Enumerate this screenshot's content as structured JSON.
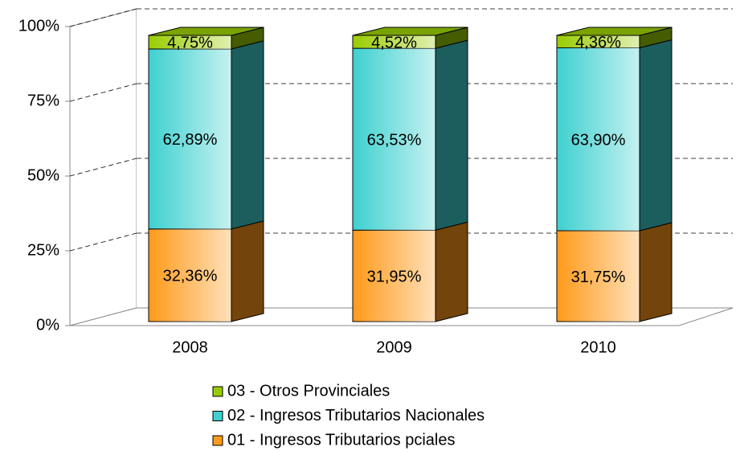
{
  "chart_data": {
    "type": "bar",
    "stacked": true,
    "categories": [
      "2008",
      "2009",
      "2010"
    ],
    "series": [
      {
        "name": "01 - Ingresos Tributarios pciales",
        "color": "#ff9a1a",
        "values": [
          32.36,
          31.95,
          31.75
        ],
        "value_labels": [
          "32,36%",
          "31,95%",
          "31,75%"
        ]
      },
      {
        "name": "02 - Ingresos Tributarios Nacionales",
        "color": "#3fd0d0",
        "values": [
          62.89,
          63.53,
          63.9
        ],
        "value_labels": [
          "62,89%",
          "63,53%",
          "63,90%"
        ]
      },
      {
        "name": "03 - Otros Provinciales",
        "color": "#99cc00",
        "values": [
          4.75,
          4.52,
          4.36
        ],
        "value_labels": [
          "4,75%",
          "4,52%",
          "4,36%"
        ]
      }
    ],
    "ylim": [
      0,
      100
    ],
    "yticks": [
      {
        "value": 0,
        "label": "0%"
      },
      {
        "value": 25,
        "label": "25%"
      },
      {
        "value": 50,
        "label": "50%"
      },
      {
        "value": 75,
        "label": "75%"
      },
      {
        "value": 100,
        "label": "100%"
      }
    ],
    "grid": true
  }
}
